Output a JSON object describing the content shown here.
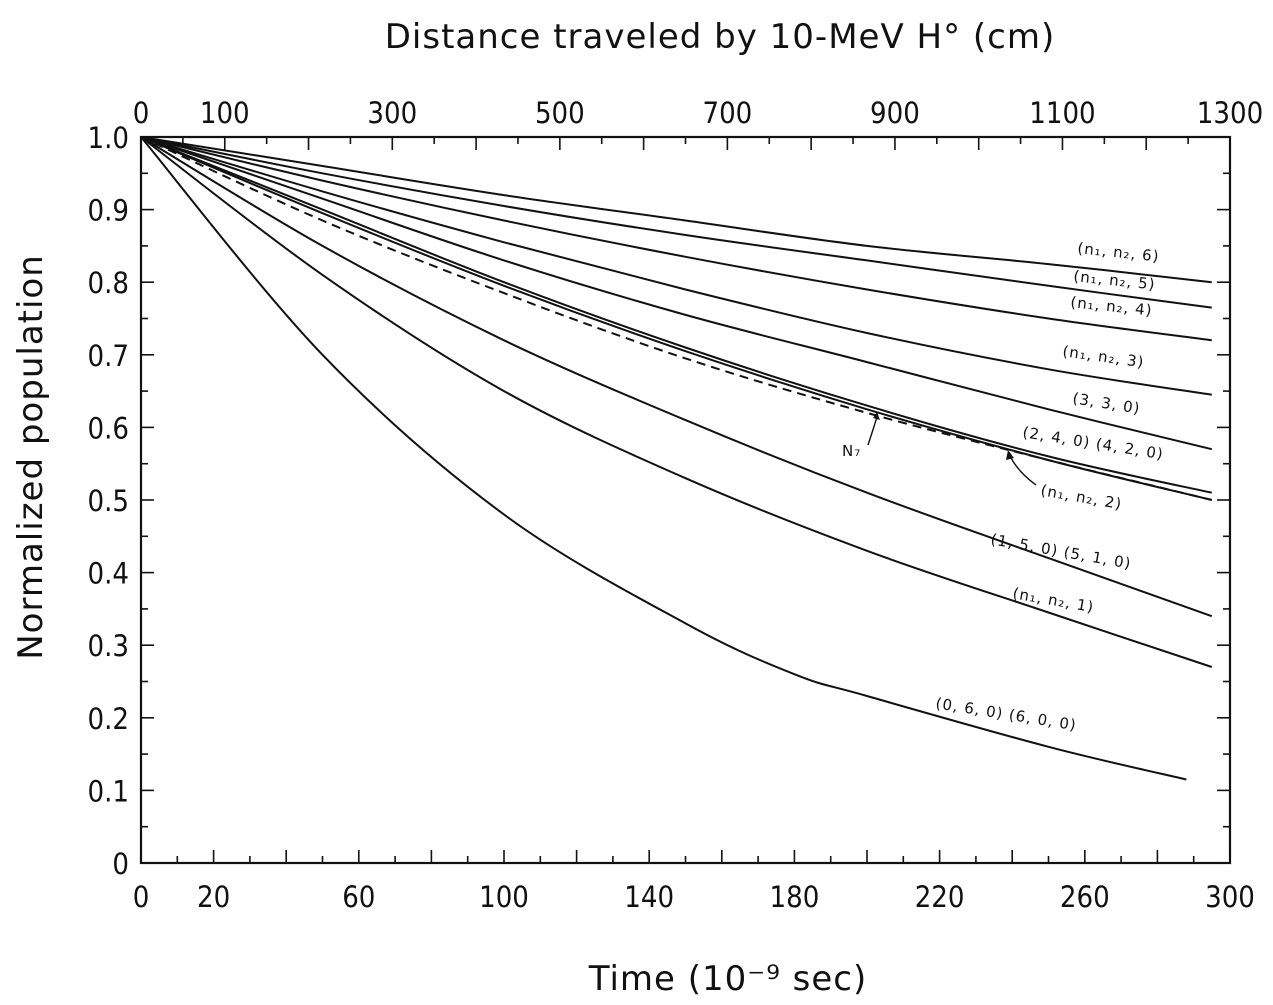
{
  "chart_data": {
    "type": "line",
    "title": "",
    "xlabel": "Time (10⁻⁹ sec)",
    "ylabel": "Normalized population",
    "x2label": "Distance traveled by 10-MeV H° (cm)",
    "xlim": [
      0,
      300
    ],
    "ylim": [
      0,
      1.0
    ],
    "x2lim": [
      0,
      1300
    ],
    "x_ticks": [
      "0",
      "20",
      "60",
      "100",
      "140",
      "180",
      "220",
      "260",
      "300"
    ],
    "x2_ticks": [
      "0",
      "100",
      "300",
      "500",
      "700",
      "900",
      "1100",
      "1300"
    ],
    "y_ticks": [
      "0",
      "0.1",
      "0.2",
      "0.3",
      "0.4",
      "0.5",
      "0.6",
      "0.7",
      "0.8",
      "0.9",
      "1.0"
    ],
    "grid": false,
    "series": [
      {
        "name": "(n₁, n₂, 6)",
        "x": [
          0,
          50,
          100,
          150,
          200,
          250,
          295
        ],
        "y": [
          1.0,
          0.96,
          0.92,
          0.885,
          0.85,
          0.825,
          0.8
        ]
      },
      {
        "name": "(n₁, n₂, 5)",
        "x": [
          0,
          50,
          100,
          150,
          200,
          250,
          295
        ],
        "y": [
          1.0,
          0.95,
          0.905,
          0.865,
          0.83,
          0.795,
          0.765
        ]
      },
      {
        "name": "(n₁, n₂, 4)",
        "x": [
          0,
          50,
          100,
          150,
          200,
          250,
          295
        ],
        "y": [
          1.0,
          0.94,
          0.885,
          0.835,
          0.79,
          0.75,
          0.72
        ]
      },
      {
        "name": "(n₁, n₂, 3)",
        "x": [
          0,
          50,
          100,
          150,
          200,
          250,
          295
        ],
        "y": [
          1.0,
          0.925,
          0.855,
          0.79,
          0.73,
          0.68,
          0.645
        ]
      },
      {
        "name": "(3, 3, 0)",
        "x": [
          0,
          50,
          100,
          150,
          200,
          250,
          295
        ],
        "y": [
          1.0,
          0.915,
          0.83,
          0.755,
          0.69,
          0.625,
          0.57
        ]
      },
      {
        "name": "(2, 4, 0) (4, 2, 0)",
        "x": [
          0,
          50,
          100,
          150,
          200,
          250,
          295
        ],
        "y": [
          1.0,
          0.9,
          0.8,
          0.71,
          0.63,
          0.56,
          0.51
        ]
      },
      {
        "name": "(n₁, n₂, 2)",
        "x": [
          0,
          50,
          100,
          150,
          200,
          250,
          295
        ],
        "y": [
          1.0,
          0.895,
          0.795,
          0.705,
          0.625,
          0.555,
          0.5
        ]
      },
      {
        "name": "N₇",
        "style": "dashed",
        "x": [
          0,
          50,
          100,
          150,
          200,
          250,
          295
        ],
        "y": [
          1.0,
          0.885,
          0.785,
          0.695,
          0.62,
          0.555,
          0.5
        ]
      },
      {
        "name": "(1, 5, 0) (5, 1, 0)",
        "x": [
          0,
          50,
          100,
          150,
          200,
          250,
          295
        ],
        "y": [
          1.0,
          0.85,
          0.72,
          0.61,
          0.51,
          0.42,
          0.34
        ]
      },
      {
        "name": "(n₁, n₂, 1)",
        "x": [
          0,
          50,
          100,
          150,
          200,
          250,
          295
        ],
        "y": [
          1.0,
          0.81,
          0.65,
          0.53,
          0.43,
          0.345,
          0.27
        ]
      },
      {
        "name": "(0, 6, 0) (6, 0, 0)",
        "x": [
          0,
          50,
          100,
          150,
          180,
          200,
          250,
          288
        ],
        "y": [
          1.0,
          0.7,
          0.48,
          0.33,
          0.26,
          0.23,
          0.16,
          0.115
        ]
      }
    ],
    "annotations": [
      "N₇",
      "(n₁, n₂, 2)"
    ],
    "colors": {
      "line": "#111111",
      "background": "#ffffff"
    }
  }
}
